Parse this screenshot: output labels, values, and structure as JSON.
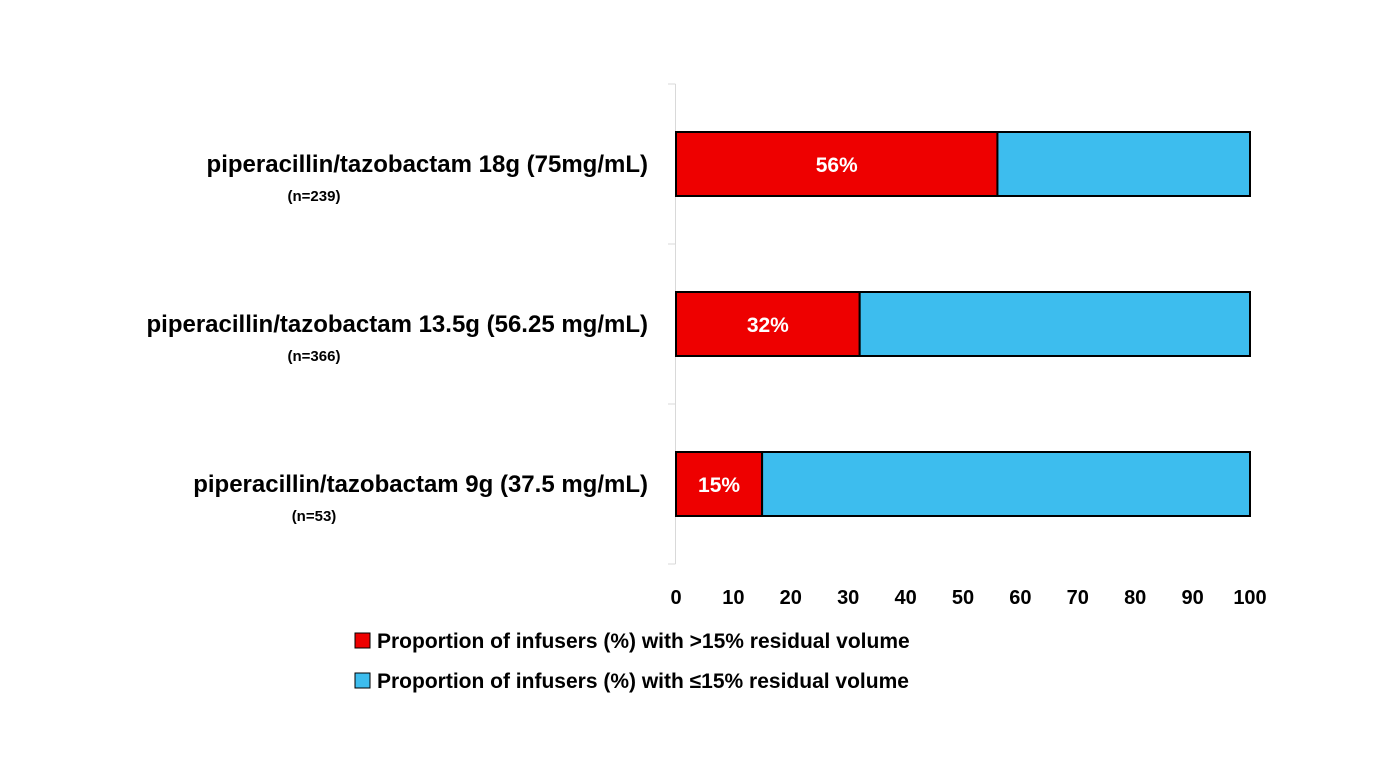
{
  "chart_data": {
    "type": "bar",
    "stacked": true,
    "orientation": "horizontal",
    "categories": [
      {
        "label": "piperacillin/tazobactam 18g (75mg/mL)",
        "sublabel": "(n=239)"
      },
      {
        "label": "piperacillin/tazobactam 13.5g (56.25 mg/mL)",
        "sublabel": "(n=366)"
      },
      {
        "label": "piperacillin/tazobactam 9g (37.5 mg/mL)",
        "sublabel": "(n=53)"
      }
    ],
    "series": [
      {
        "name": "Proportion of infusers (%) with  >15% residual volume",
        "color": "#ee0000",
        "values": [
          56,
          32,
          15
        ],
        "data_labels": [
          "56%",
          "32%",
          "15%"
        ]
      },
      {
        "name": "Proportion of infusers (%) with  ≤15% residual volume",
        "color": "#3dbdee",
        "values": [
          44,
          68,
          85
        ]
      }
    ],
    "xlim": [
      0,
      100
    ],
    "xticks": [
      "0",
      "10",
      "20",
      "30",
      "40",
      "50",
      "60",
      "70",
      "80",
      "90",
      "100"
    ],
    "grid": false,
    "legend_position": "bottom"
  }
}
